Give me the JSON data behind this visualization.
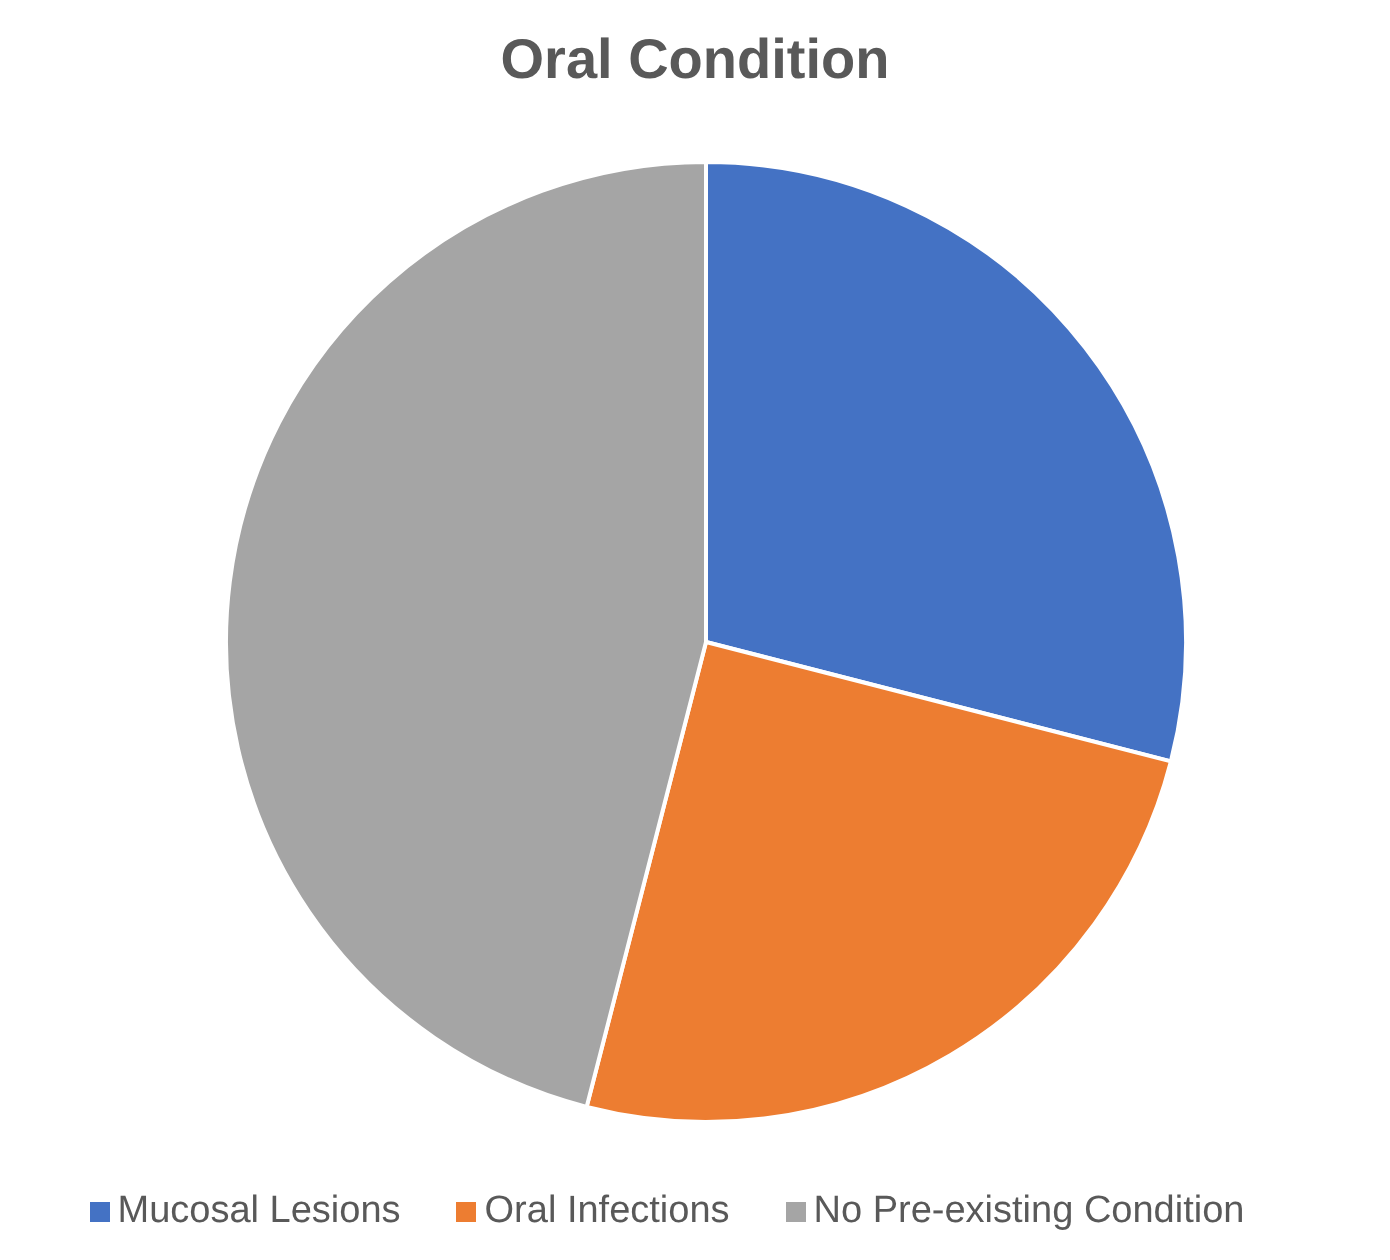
{
  "chart_data": {
    "type": "pie",
    "title": "Oral Condition",
    "categories": [
      "Mucosal Lesions",
      "Oral Infections",
      "No Pre-existing Condition"
    ],
    "values": [
      29,
      25,
      46
    ],
    "colors": [
      "#4472c4",
      "#ed7d31",
      "#a5a5a5"
    ],
    "legend": "bottom"
  }
}
